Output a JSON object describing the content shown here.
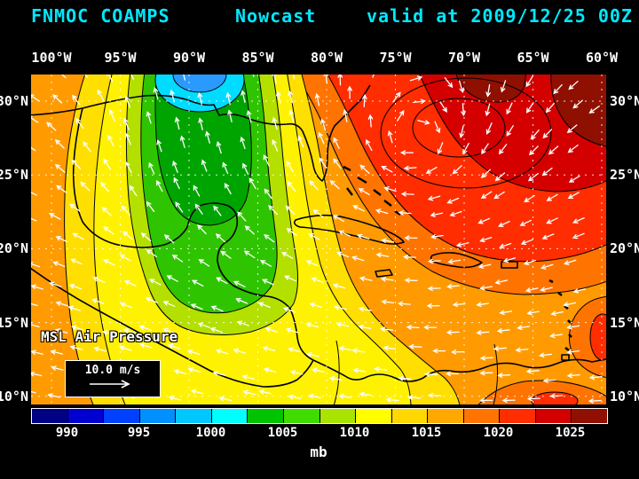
{
  "title": {
    "model": "FNMOC COAMPS",
    "product": "Nowcast",
    "valid": "valid at 2009/12/25 00Z"
  },
  "axes": {
    "lon_labels": [
      "100°W",
      "95°W",
      "90°W",
      "85°W",
      "80°W",
      "75°W",
      "70°W",
      "65°W",
      "60°W"
    ],
    "lat_labels": [
      "30°N",
      "25°N",
      "20°N",
      "15°N",
      "10°N"
    ]
  },
  "map": {
    "field_label": "MSL Air Pressure"
  },
  "wind_legend": {
    "speed_label": "10.0 m/s"
  },
  "colorbar": {
    "unit": "mb",
    "tick_labels": [
      "990",
      "995",
      "1000",
      "1005",
      "1010",
      "1015",
      "1020",
      "1025"
    ],
    "colors": [
      "#000085",
      "#0000d0",
      "#0040ff",
      "#0090ff",
      "#00c8ff",
      "#00ffff",
      "#00c400",
      "#40dc00",
      "#a8e400",
      "#ffff00",
      "#ffd800",
      "#ffa800",
      "#ff7400",
      "#ff2d00",
      "#d40000",
      "#8f1000"
    ]
  },
  "chart_data": {
    "type": "heatmap",
    "title": "FNMOC COAMPS Nowcast — MSL Air Pressure, valid at 2009/12/25 00Z",
    "field": "MSL Air Pressure",
    "unit": "mb",
    "x_axis": {
      "label": "longitude",
      "range": [
        "100°W",
        "60°W"
      ],
      "tick_step_deg": 5
    },
    "y_axis": {
      "label": "latitude",
      "range": [
        "10°N",
        "30°N"
      ],
      "tick_step_deg": 5
    },
    "colorbar_ticks": [
      990,
      995,
      1000,
      1005,
      1010,
      1015,
      1020,
      1025
    ],
    "colorbar_range_mb": [
      987.5,
      1027.5
    ],
    "reference_wind_vector_mps": 10.0,
    "features": [
      {
        "name": "low-pressure trough (cyan/blue minimum)",
        "location": "~91°W 31°N",
        "approx_value_mb": 1000
      },
      {
        "name": "green low-pressure band",
        "location": "~93–88°W, 15–30°N",
        "approx_value_mb": 1006
      },
      {
        "name": "yellow band over Gulf of Mexico / Central America",
        "location": "~97–82°W",
        "approx_value_mb": 1010
      },
      {
        "name": "subtropical high (dark red maximum)",
        "location": "~72°W 30°N",
        "approx_value_mb": 1025
      },
      {
        "name": "broad orange field over Caribbean / Atlantic",
        "approx_value_mb": 1014
      },
      {
        "name": "easterly trade winds with clockwise flow around the Atlantic high",
        "reference_vector": "10.0 m/s"
      }
    ]
  }
}
